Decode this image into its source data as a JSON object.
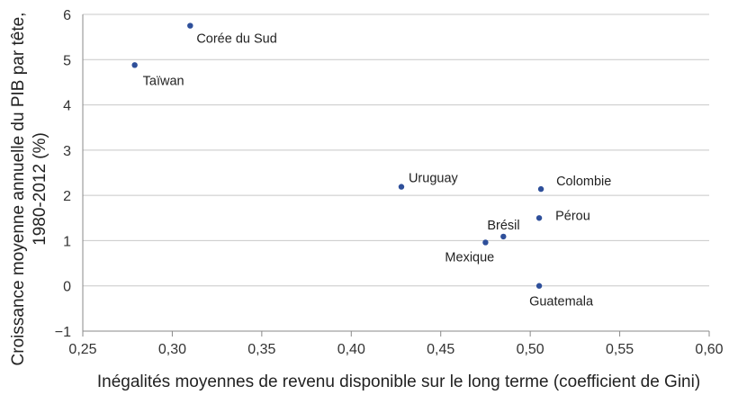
{
  "chart_data": {
    "type": "scatter",
    "title": "",
    "xlabel": "Inégalités moyennes de revenu disponible sur le long terme (coefficient de Gini)",
    "ylabel_lines": [
      "Croissance moyenne annuelle du PIB par tête,",
      "1980-2012 (%)"
    ],
    "xlim": [
      0.25,
      0.6
    ],
    "ylim": [
      -1,
      6
    ],
    "x_ticks": [
      0.25,
      0.3,
      0.35,
      0.4,
      0.45,
      0.5,
      0.55,
      0.6
    ],
    "x_tick_labels": [
      "0,25",
      "0,30",
      "0,35",
      "0,40",
      "0,45",
      "0,50",
      "0,55",
      "0,60"
    ],
    "y_ticks": [
      -1,
      0,
      1,
      2,
      3,
      4,
      5,
      6
    ],
    "y_tick_labels": [
      "−1",
      "0",
      "1",
      "2",
      "3",
      "4",
      "5",
      "6"
    ],
    "grid": "horizontal",
    "marker_color": "#2e4f9a",
    "points": [
      {
        "label": "Corée du Sud",
        "x": 0.31,
        "y": 5.75
      },
      {
        "label": "Taïwan",
        "x": 0.279,
        "y": 4.88
      },
      {
        "label": "Uruguay",
        "x": 0.428,
        "y": 2.19
      },
      {
        "label": "Colombie",
        "x": 0.506,
        "y": 2.14
      },
      {
        "label": "Pérou",
        "x": 0.505,
        "y": 1.5
      },
      {
        "label": "Brésil",
        "x": 0.485,
        "y": 1.09
      },
      {
        "label": "Mexique",
        "x": 0.475,
        "y": 0.96
      },
      {
        "label": "Guatemala",
        "x": 0.505,
        "y": 0.0
      }
    ]
  }
}
